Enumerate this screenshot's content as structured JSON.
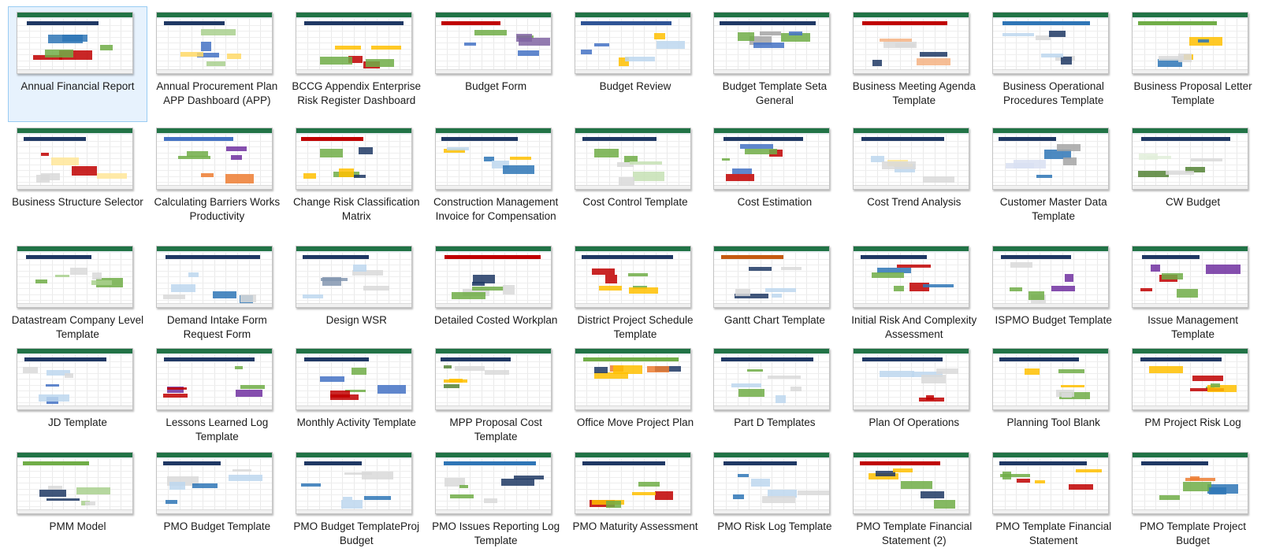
{
  "files": [
    {
      "name": "Annual Financial Report",
      "selected": true,
      "colors": [
        "#1f3864",
        "#2e75b6",
        "#c00000",
        "#70ad47"
      ]
    },
    {
      "name": "Annual Procurement Plan APP Dashboard (APP)",
      "colors": [
        "#1f3864",
        "#4472c4",
        "#a9d08e",
        "#ffd966"
      ]
    },
    {
      "name": "BCCG Appendix Enterprise Risk Register Dashboard",
      "colors": [
        "#1f3864",
        "#c00000",
        "#70ad47",
        "#ffc000"
      ]
    },
    {
      "name": "Budget Form",
      "colors": [
        "#c00000",
        "#70ad47",
        "#8064a2",
        "#4472c4"
      ]
    },
    {
      "name": "Budget Review",
      "colors": [
        "#2f5496",
        "#ffc000",
        "#4472c4",
        "#bdd7ee"
      ]
    },
    {
      "name": "Budget Template Seta General",
      "colors": [
        "#1f3864",
        "#70ad47",
        "#4472c4",
        "#a5a5a5"
      ]
    },
    {
      "name": "Business Meeting Agenda Template",
      "colors": [
        "#c00000",
        "#1f3864",
        "#f4b183",
        "#d9d9d9"
      ]
    },
    {
      "name": "Business Operational Procedures Template",
      "colors": [
        "#2e75b6",
        "#d9d9d9",
        "#1f3864",
        "#bdd7ee"
      ]
    },
    {
      "name": "Business Proposal Letter Template",
      "colors": [
        "#70ad47",
        "#ffc000",
        "#2e75b6",
        "#d9d9d9"
      ]
    },
    {
      "name": "Business Structure Selector",
      "colors": [
        "#1f3864",
        "#c00000",
        "#ffe699",
        "#d9d9d9"
      ]
    },
    {
      "name": "Calculating Barriers Works Productivity",
      "colors": [
        "#4472c4",
        "#ed7d31",
        "#7030a0",
        "#70ad47"
      ]
    },
    {
      "name": "Change Risk Classification Matrix",
      "colors": [
        "#c00000",
        "#ffc000",
        "#70ad47",
        "#1f3864"
      ]
    },
    {
      "name": "Construction Management Invoice for Compensation",
      "colors": [
        "#1f3864",
        "#ffc000",
        "#2e75b6",
        "#bdd7ee"
      ]
    },
    {
      "name": "Cost Control Template",
      "colors": [
        "#1f3864",
        "#70ad47",
        "#c6e0b4",
        "#d9d9d9"
      ]
    },
    {
      "name": "Cost Estimation",
      "colors": [
        "#1f3864",
        "#70ad47",
        "#c00000",
        "#4472c4"
      ]
    },
    {
      "name": "Cost Trend Analysis",
      "colors": [
        "#1f3864",
        "#ffe699",
        "#bdd7ee",
        "#d9d9d9"
      ]
    },
    {
      "name": "Customer Master Data Template",
      "colors": [
        "#1f3864",
        "#2e75b6",
        "#d9e1f2",
        "#a5a5a5"
      ]
    },
    {
      "name": "CW Budget",
      "colors": [
        "#1f3864",
        "#548235",
        "#e2efda",
        "#d9d9d9"
      ]
    },
    {
      "name": "Datastream Company Level Template",
      "colors": [
        "#1f3864",
        "#70ad47",
        "#a9d08e",
        "#d9d9d9"
      ]
    },
    {
      "name": "Demand Intake Form Request Form",
      "colors": [
        "#1f3864",
        "#2e75b6",
        "#d9d9d9",
        "#bdd7ee"
      ]
    },
    {
      "name": "Design WSR",
      "colors": [
        "#1f3864",
        "#d9d9d9",
        "#8497b0",
        "#bdd7ee"
      ]
    },
    {
      "name": "Detailed Costed Workplan",
      "colors": [
        "#c00000",
        "#1f3864",
        "#d9d9d9",
        "#70ad47"
      ]
    },
    {
      "name": "District Project Schedule Template",
      "colors": [
        "#1f3864",
        "#c00000",
        "#70ad47",
        "#ffc000"
      ]
    },
    {
      "name": "Gantt Chart Template",
      "colors": [
        "#c55a11",
        "#1f3864",
        "#bdd7ee",
        "#d9d9d9"
      ]
    },
    {
      "name": "Initial Risk And Complexity Assessment",
      "colors": [
        "#1f3864",
        "#2e75b6",
        "#70ad47",
        "#c00000"
      ]
    },
    {
      "name": "ISPMO Budget Template",
      "colors": [
        "#1f3864",
        "#7030a0",
        "#70ad47",
        "#d9d9d9"
      ]
    },
    {
      "name": "Issue Management Template",
      "colors": [
        "#1f3864",
        "#c00000",
        "#70ad47",
        "#7030a0"
      ]
    },
    {
      "name": "JD Template",
      "colors": [
        "#1f3864",
        "#4472c4",
        "#d9d9d9",
        "#bdd7ee"
      ]
    },
    {
      "name": "Lessons Learned Log Template",
      "colors": [
        "#1f3864",
        "#7030a0",
        "#c00000",
        "#70ad47"
      ]
    },
    {
      "name": "Monthly Activity Template",
      "colors": [
        "#1f3864",
        "#70ad47",
        "#c00000",
        "#4472c4"
      ]
    },
    {
      "name": "MPP Proposal Cost Template",
      "colors": [
        "#1f3864",
        "#548235",
        "#ffc000",
        "#d9d9d9"
      ]
    },
    {
      "name": "Office Move Project Plan",
      "colors": [
        "#70ad47",
        "#ffc000",
        "#1f3864",
        "#ed7d31"
      ]
    },
    {
      "name": "Part D Templates",
      "colors": [
        "#1f3864",
        "#70ad47",
        "#bdd7ee",
        "#d9d9d9"
      ]
    },
    {
      "name": "Plan Of Operations",
      "colors": [
        "#1f3864",
        "#c00000",
        "#bdd7ee",
        "#d9d9d9"
      ]
    },
    {
      "name": "Planning Tool Blank",
      "colors": [
        "#1f3864",
        "#70ad47",
        "#ffc000",
        "#d9d9d9"
      ]
    },
    {
      "name": "PM Project Risk Log",
      "colors": [
        "#1f3864",
        "#c00000",
        "#ffc000",
        "#70ad47"
      ]
    },
    {
      "name": "PMM Model",
      "colors": [
        "#70ad47",
        "#a9d08e",
        "#d9d9d9",
        "#1f3864"
      ]
    },
    {
      "name": "PMO Budget Template",
      "colors": [
        "#1f3864",
        "#2e75b6",
        "#d9d9d9",
        "#bdd7ee"
      ]
    },
    {
      "name": "PMO Budget TemplateProj Budget",
      "colors": [
        "#1f3864",
        "#2e75b6",
        "#d9d9d9",
        "#bdd7ee"
      ]
    },
    {
      "name": "PMO Issues Reporting Log Template",
      "colors": [
        "#2e75b6",
        "#1f3864",
        "#d9d9d9",
        "#70ad47"
      ]
    },
    {
      "name": "PMO Maturity Assessment",
      "colors": [
        "#1f3864",
        "#c00000",
        "#ffc000",
        "#70ad47"
      ]
    },
    {
      "name": "PMO Risk Log Template",
      "colors": [
        "#1f3864",
        "#2e75b6",
        "#d9d9d9",
        "#bdd7ee"
      ]
    },
    {
      "name": "PMO Template Financial Statement (2)",
      "colors": [
        "#c00000",
        "#70ad47",
        "#ffc000",
        "#1f3864"
      ]
    },
    {
      "name": "PMO Template Financial Statement",
      "colors": [
        "#1f3864",
        "#c00000",
        "#70ad47",
        "#ffc000"
      ]
    },
    {
      "name": "PMO Template Project Budget",
      "colors": [
        "#1f3864",
        "#2e75b6",
        "#70ad47",
        "#ed7d31"
      ]
    }
  ]
}
